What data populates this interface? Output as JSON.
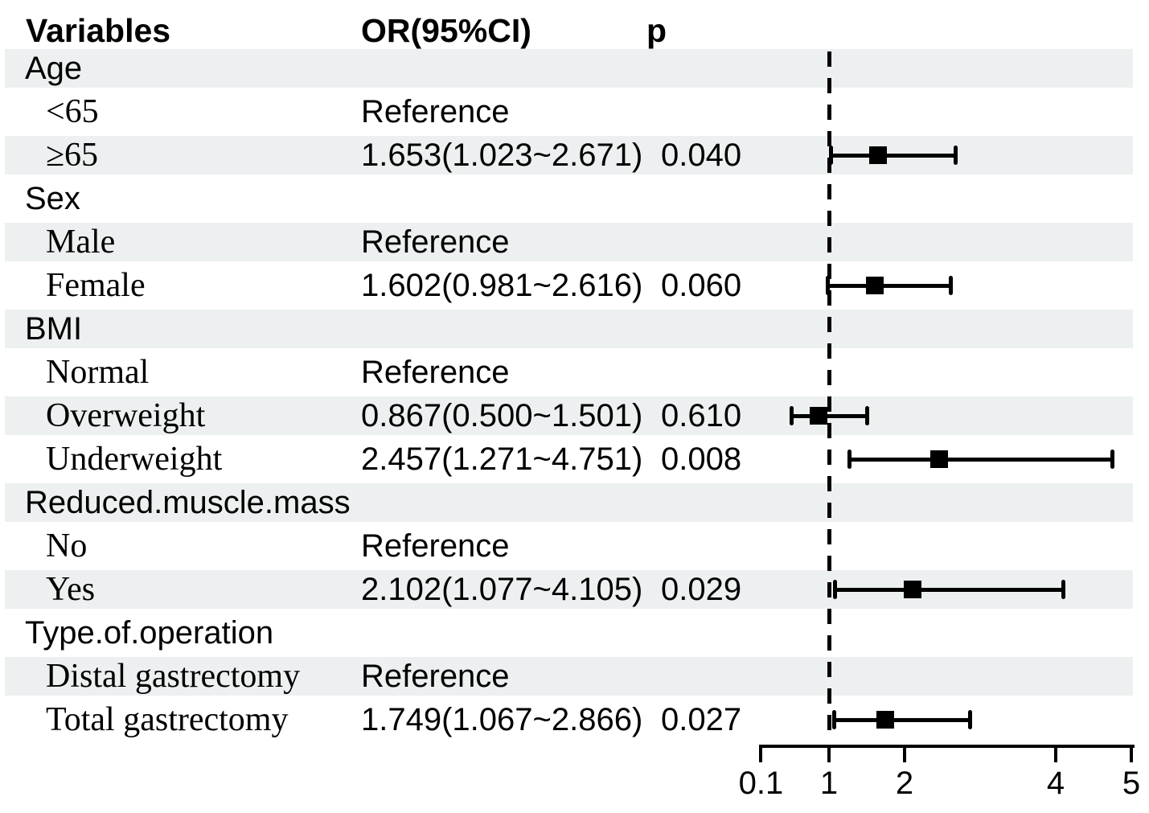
{
  "chart_data": {
    "type": "scatter",
    "variant": "forest_plot",
    "columns": [
      "Variables",
      "OR(95%CI)",
      "p"
    ],
    "x_axis": {
      "scale": "linear",
      "tick_labels": [
        "0.1",
        "1",
        "2",
        "4",
        "5"
      ],
      "tick_values": [
        0.1,
        1,
        2,
        4,
        5
      ],
      "range": [
        0.1,
        5
      ],
      "reference_line": 1.0,
      "grid": false
    },
    "colors": {
      "marker": "#000000",
      "stripe": "#edf0f0",
      "text": "#000000"
    },
    "rows": [
      {
        "label": "Age",
        "kind": "group",
        "shaded": true,
        "or_text": "",
        "p_text": ""
      },
      {
        "label": "<65",
        "kind": "level",
        "shaded": false,
        "or_text": "Reference",
        "p_text": ""
      },
      {
        "label": "≥65",
        "kind": "level",
        "shaded": true,
        "or_text": "1.653(1.023~2.671)",
        "p_text": "0.040",
        "or": 1.653,
        "ci_low": 1.023,
        "ci_high": 2.671
      },
      {
        "label": "Sex",
        "kind": "group",
        "shaded": false,
        "or_text": "",
        "p_text": ""
      },
      {
        "label": "Male",
        "kind": "level",
        "shaded": true,
        "or_text": "Reference",
        "p_text": ""
      },
      {
        "label": "Female",
        "kind": "level",
        "shaded": false,
        "or_text": "1.602(0.981~2.616)",
        "p_text": "0.060",
        "or": 1.602,
        "ci_low": 0.981,
        "ci_high": 2.616
      },
      {
        "label": "BMI",
        "kind": "group",
        "shaded": true,
        "or_text": "",
        "p_text": ""
      },
      {
        "label": "Normal",
        "kind": "level",
        "shaded": false,
        "or_text": "Reference",
        "p_text": ""
      },
      {
        "label": "Overweight",
        "kind": "level",
        "shaded": true,
        "or_text": "0.867(0.500~1.501)",
        "p_text": "0.610",
        "or": 0.867,
        "ci_low": 0.5,
        "ci_high": 1.501
      },
      {
        "label": "Underweight",
        "kind": "level",
        "shaded": false,
        "or_text": "2.457(1.271~4.751)",
        "p_text": "0.008",
        "or": 2.457,
        "ci_low": 1.271,
        "ci_high": 4.751
      },
      {
        "label": "Reduced.muscle.mass",
        "kind": "group",
        "shaded": true,
        "or_text": "",
        "p_text": ""
      },
      {
        "label": "No",
        "kind": "level",
        "shaded": false,
        "or_text": "Reference",
        "p_text": ""
      },
      {
        "label": "Yes",
        "kind": "level",
        "shaded": true,
        "or_text": "2.102(1.077~4.105)",
        "p_text": "0.029",
        "or": 2.102,
        "ci_low": 1.077,
        "ci_high": 4.105
      },
      {
        "label": "Type.of.operation",
        "kind": "group",
        "shaded": false,
        "or_text": "",
        "p_text": ""
      },
      {
        "label": "Distal gastrectomy",
        "kind": "level",
        "shaded": true,
        "or_text": "Reference",
        "p_text": ""
      },
      {
        "label": "Total gastrectomy",
        "kind": "level",
        "shaded": false,
        "or_text": "1.749(1.067~2.866)",
        "p_text": "0.027",
        "or": 1.749,
        "ci_low": 1.067,
        "ci_high": 2.866
      }
    ]
  }
}
